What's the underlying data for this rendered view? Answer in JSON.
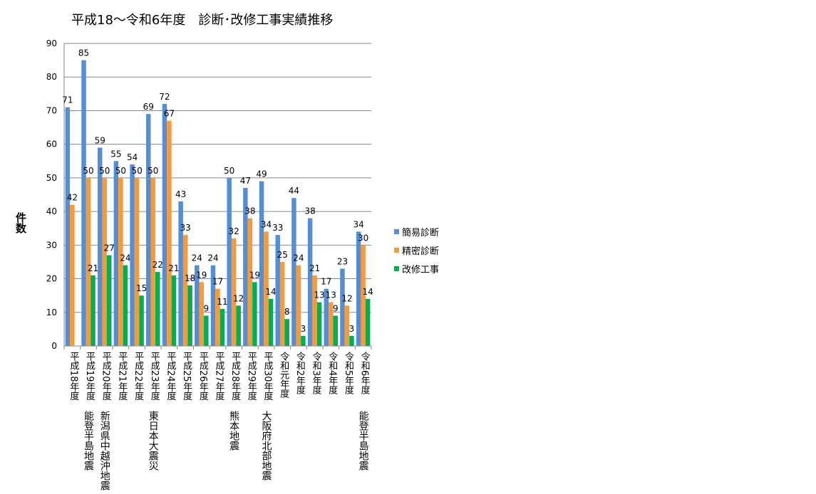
{
  "chart_data": {
    "type": "bar",
    "title": "平成18～令和6年度　診断･改修工事実績推移",
    "xlabel": "",
    "ylabel": "件数",
    "ylim": [
      0,
      90
    ],
    "yticks": [
      0,
      10,
      20,
      30,
      40,
      50,
      60,
      70,
      80,
      90
    ],
    "grid": true,
    "legend_position": "right",
    "categories": [
      "平成18年度",
      "平成19年度",
      "平成20年度",
      "平成21年度",
      "平成22年度",
      "平成23年度",
      "平成24年度",
      "平成25年度",
      "平成26年度",
      "平成27年度",
      "平成28年度",
      "平成29年度",
      "平成30年度",
      "令和元年度",
      "令和2年度",
      "令和3年度",
      "令和4年度",
      "令和5年度",
      "令和6年度"
    ],
    "annotations": [
      {
        "category_index": 1,
        "text": "能登半島地震"
      },
      {
        "category_index": 2,
        "text": "新潟県中越沖地震"
      },
      {
        "category_index": 5,
        "text": "東日本大震災"
      },
      {
        "category_index": 10,
        "text": "熊本地震"
      },
      {
        "category_index": 12,
        "text": "大阪府北部地震"
      },
      {
        "category_index": 18,
        "text": "能登半島地震"
      }
    ],
    "series": [
      {
        "name": "簡易診断",
        "color": "#558ED5",
        "values": [
          71,
          85,
          59,
          55,
          54,
          69,
          72,
          43,
          24,
          24,
          50,
          47,
          49,
          33,
          44,
          38,
          17,
          23,
          34
        ]
      },
      {
        "name": "精密診断",
        "color": "#F79A3A",
        "values": [
          42,
          50,
          50,
          50,
          50,
          50,
          67,
          33,
          19,
          17,
          32,
          38,
          34,
          25,
          24,
          21,
          13,
          12,
          30
        ]
      },
      {
        "name": "改修工事",
        "color": "#00B050",
        "values": [
          null,
          21,
          27,
          24,
          15,
          22,
          21,
          18,
          9,
          11,
          12,
          19,
          14,
          8,
          3,
          13,
          9,
          3,
          14
        ]
      }
    ]
  }
}
